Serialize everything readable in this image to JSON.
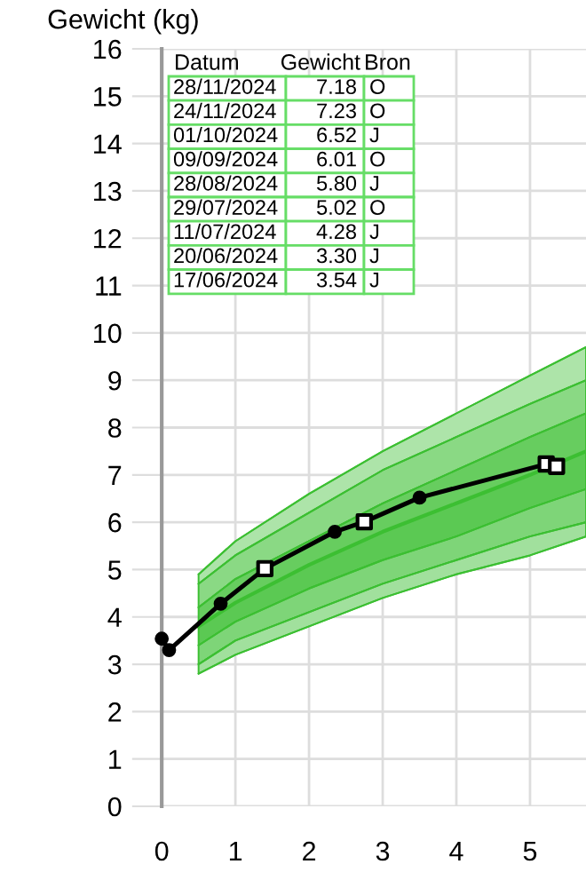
{
  "chart_data": {
    "type": "line",
    "ylabel": "Gewicht (kg)",
    "xlim": [
      0,
      5.76
    ],
    "xticks": [
      0,
      1,
      2,
      3,
      4,
      5
    ],
    "ylim": [
      0,
      16
    ],
    "yticks": [
      0,
      1,
      2,
      3,
      4,
      5,
      6,
      7,
      8,
      9,
      10,
      11,
      12,
      13,
      14,
      15,
      16
    ],
    "grid": true,
    "annotations": [
      "Datum",
      "Gewicht",
      "Bron",
      "28/11/2024",
      "7.18",
      "O",
      "24/11/2024",
      "7.23",
      "O",
      "01/10/2024",
      "6.52",
      "J",
      "09/09/2024",
      "6.01",
      "O",
      "28/08/2024",
      "5.80",
      "J",
      "29/07/2024",
      "5.02",
      "O",
      "11/07/2024",
      "4.28",
      "J",
      "20/06/2024",
      "3.30",
      "J",
      "17/06/2024",
      "3.54",
      "J"
    ],
    "series": [
      {
        "color": "#3cbf32",
        "marker": "none",
        "x": [
          0.5,
          1,
          2,
          3,
          4,
          5,
          5.76
        ],
        "values": [
          4.9,
          5.6,
          6.6,
          7.5,
          8.3,
          9.1,
          9.7
        ],
        "lower": [
          4.7,
          5.3,
          6.2,
          7.1,
          7.8,
          8.5,
          9.0
        ],
        "upper": [
          4.9,
          5.6,
          6.6,
          7.5,
          8.3,
          9.1,
          9.7
        ]
      },
      {
        "color": "#3cbf32",
        "marker": "none",
        "x": [
          0.5,
          1,
          2,
          3,
          4,
          5,
          5.76
        ],
        "values": [
          4.7,
          5.3,
          6.2,
          7.1,
          7.8,
          8.5,
          9.0
        ],
        "lower": [
          4.2,
          4.8,
          5.6,
          6.4,
          7.1,
          7.8,
          8.3
        ],
        "upper": [
          4.7,
          5.3,
          6.2,
          7.1,
          7.8,
          8.5,
          9.0
        ]
      },
      {
        "color": "#3cbf32",
        "marker": "none",
        "x": [
          0.5,
          1,
          2,
          3,
          4,
          5,
          5.76
        ],
        "values": [
          4.2,
          4.8,
          5.6,
          6.4,
          7.1,
          7.8,
          8.3
        ],
        "lower": [
          3.8,
          4.3,
          5.1,
          5.8,
          6.4,
          7.0,
          7.5
        ],
        "upper": [
          4.2,
          4.8,
          5.6,
          6.4,
          7.1,
          7.8,
          8.3
        ]
      },
      {
        "color": "#3cbf32",
        "marker": "none",
        "x": [
          0.5,
          1,
          2,
          3,
          4,
          5,
          5.76
        ],
        "values": [
          3.8,
          4.3,
          5.1,
          5.8,
          6.4,
          7.0,
          7.5
        ],
        "lower": [
          3.4,
          3.9,
          4.6,
          5.2,
          5.7,
          6.3,
          6.7
        ],
        "upper": [
          3.8,
          4.3,
          5.1,
          5.8,
          6.4,
          7.0,
          7.5
        ]
      },
      {
        "color": "#3cbf32",
        "marker": "none",
        "x": [
          0.5,
          1,
          2,
          3,
          4,
          5,
          5.76
        ],
        "values": [
          3.4,
          3.9,
          4.6,
          5.2,
          5.7,
          6.3,
          6.7
        ],
        "lower": [
          3.0,
          3.5,
          4.1,
          4.7,
          5.2,
          5.7,
          6.0
        ],
        "upper": [
          3.4,
          3.9,
          4.6,
          5.2,
          5.7,
          6.3,
          6.7
        ]
      },
      {
        "color": "#3cbf32",
        "marker": "none",
        "x": [
          0.5,
          1,
          2,
          3,
          4,
          5,
          5.76
        ],
        "values": [
          3.0,
          3.5,
          4.1,
          4.7,
          5.2,
          5.7,
          6.0
        ],
        "lower": [
          2.8,
          3.2,
          3.8,
          4.4,
          4.9,
          5.3,
          5.7
        ],
        "upper": [
          3.0,
          3.5,
          4.1,
          4.7,
          5.2,
          5.7,
          6.0
        ]
      },
      {
        "color": "#3cbf32",
        "marker": "none",
        "x": [
          0.5,
          1,
          2,
          3,
          4,
          5,
          5.76
        ],
        "values": [
          2.8,
          3.2,
          3.8,
          4.4,
          4.9,
          5.3,
          5.7
        ]
      },
      {
        "color": "#000000",
        "marker": "none",
        "x": [
          0,
          0.1,
          0.8,
          1.4,
          2.35,
          2.75,
          3.5,
          5.22,
          5.36
        ],
        "values": [
          3.54,
          3.3,
          4.28,
          5.02,
          5.8,
          6.01,
          6.52,
          7.23,
          7.18
        ]
      },
      {
        "type": "scatter",
        "color": "#000000",
        "marker": "circle",
        "x": [
          0,
          0.1,
          0.8,
          2.35,
          3.5
        ],
        "values": [
          3.54,
          3.3,
          4.28,
          5.8,
          6.52
        ]
      },
      {
        "type": "scatter",
        "color": "#000000",
        "marker": "square",
        "x": [
          1.4,
          2.75,
          5.22,
          5.36
        ],
        "values": [
          5.02,
          6.01,
          7.23,
          7.18
        ]
      }
    ]
  }
}
